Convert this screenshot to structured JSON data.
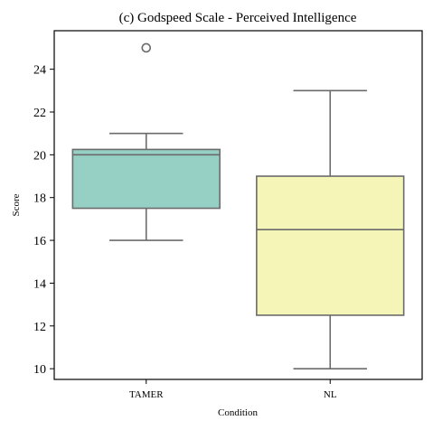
{
  "chart_data": {
    "type": "box",
    "title": "(c) Godspeed Scale - Perceived Intelligence",
    "xlabel": "Condition",
    "ylabel": "Score",
    "categories": [
      "TAMER",
      "NL"
    ],
    "ylim": [
      9.5,
      25.8
    ],
    "yticks": [
      10,
      12,
      14,
      16,
      18,
      20,
      22,
      24
    ],
    "grid": false,
    "boxes": [
      {
        "category": "TAMER",
        "whisker_low": 16,
        "q1": 17.5,
        "median": 20,
        "q3": 20.25,
        "whisker_high": 21,
        "outliers": [
          25
        ],
        "color": "#96cfc3"
      },
      {
        "category": "NL",
        "whisker_low": 10,
        "q1": 12.5,
        "median": 16.5,
        "q3": 19,
        "whisker_high": 23,
        "outliers": [],
        "color": "#f5f5b8"
      }
    ],
    "colors": {
      "line": "#6b6b6b",
      "frame": "#000000"
    }
  }
}
